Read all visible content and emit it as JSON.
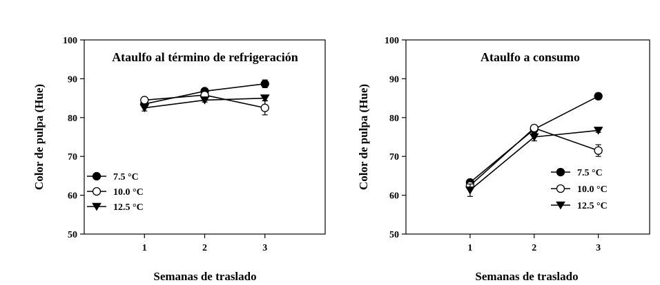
{
  "chart_data": [
    {
      "type": "line",
      "title": "Ataulfo al término de refrigeración",
      "xlabel": "Semanas de traslado",
      "ylabel": "Color de pulpa (Hue)",
      "x": [
        1,
        2,
        3
      ],
      "xticks": [
        "1",
        "2",
        "3"
      ],
      "yticks": [
        "50",
        "60",
        "70",
        "80",
        "90",
        "100"
      ],
      "xlim": [
        0,
        4
      ],
      "ylim": [
        50,
        100
      ],
      "legend_position": "bottom-left",
      "series": [
        {
          "name": "7.5 °C",
          "marker": "filled-circle",
          "values": [
            83.5,
            86.8,
            88.7
          ],
          "errors": [
            0.6,
            0.6,
            1.0
          ]
        },
        {
          "name": "10.0 °C",
          "marker": "open-circle",
          "values": [
            84.5,
            85.8,
            82.5
          ],
          "errors": [
            0.6,
            0.6,
            1.8
          ]
        },
        {
          "name": "12.5 °C",
          "marker": "filled-triangle-down",
          "values": [
            82.5,
            84.5,
            85.0
          ],
          "errors": [
            0.8,
            0.5,
            0.6
          ]
        }
      ]
    },
    {
      "type": "line",
      "title": "Ataulfo a consumo",
      "xlabel": "Semanas de traslado",
      "ylabel": "Color de pulpa (Hue)",
      "x": [
        1,
        2,
        3
      ],
      "xticks": [
        "1",
        "2",
        "3"
      ],
      "yticks": [
        "50",
        "60",
        "70",
        "80",
        "90",
        "100"
      ],
      "xlim": [
        0,
        3.8
      ],
      "ylim": [
        50,
        100
      ],
      "legend_position": "right",
      "series": [
        {
          "name": "7.5 °C",
          "marker": "filled-circle",
          "values": [
            63.3,
            77.0,
            85.5
          ],
          "errors": [
            0.7,
            0.6,
            0.8
          ]
        },
        {
          "name": "10.0 °C",
          "marker": "open-circle",
          "values": [
            62.5,
            77.3,
            71.5
          ],
          "errors": [
            0.7,
            0.6,
            1.5
          ]
        },
        {
          "name": "12.5 °C",
          "marker": "filled-triangle-down",
          "values": [
            61.3,
            75.0,
            76.7
          ],
          "errors": [
            1.6,
            1.0,
            0.5
          ]
        }
      ]
    }
  ]
}
